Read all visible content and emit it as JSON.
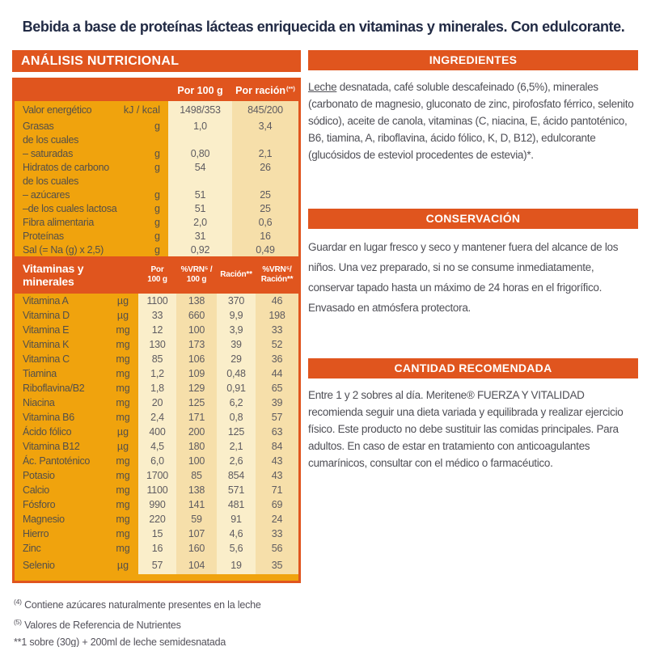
{
  "page": {
    "top_title": "Bebida a base de proteínas lácteas enriquecida en vitaminas y minerales. Con edulcorante."
  },
  "colors": {
    "orange": "#E0551E",
    "yellow": "#F0A30D",
    "cream": "#FAEECA",
    "tan": "#F6DFAA",
    "title_navy": "#222B45",
    "text_gray": "#534F4A"
  },
  "nutrition": {
    "section_title": "ANÁLISIS NUTRICIONAL",
    "header": {
      "col1": "Por 100 g",
      "col2": "Por ración",
      "col2_sup": "(**)"
    },
    "macro_rows": [
      {
        "label": "Valor energético",
        "unit": "kJ / kcal",
        "per100": "1498/353",
        "racion": "845/200"
      },
      {
        "label": "Grasas",
        "unit": "g",
        "per100": "1,0",
        "racion": "3,4"
      },
      {
        "label": "de los cuales",
        "unit": "",
        "per100": "",
        "racion": ""
      },
      {
        "label": "– saturadas",
        "unit": "g",
        "per100": "0,80",
        "racion": "2,1"
      },
      {
        "label": "Hidratos de carbono",
        "unit": "g",
        "per100": "54",
        "racion": "26"
      },
      {
        "label": "de los cuales",
        "unit": "",
        "per100": "",
        "racion": ""
      },
      {
        "label": "– azúcares",
        "unit": "g",
        "per100": "51",
        "racion": "25"
      },
      {
        "label": "–de los cuales lactosa",
        "unit": "g",
        "per100": "51",
        "racion": "25"
      },
      {
        "label": "Fibra alimentaria",
        "unit": "g",
        "per100": "2,0",
        "racion": "0,6"
      },
      {
        "label": "Proteínas",
        "unit": "g",
        "per100": "31",
        "racion": "16"
      },
      {
        "label": "Sal (= Na (g) x 2,5)",
        "unit": "g",
        "per100": "0,92",
        "racion": "0,49"
      }
    ],
    "vitamins_header": {
      "title": "Vitaminas y\nminerales",
      "c1": "Por\n100 g",
      "c2": "%VRN⁵ /\n100 g",
      "c3": "Ración**",
      "c4": "%VRN⁵/\nRación**"
    },
    "vitamin_rows": [
      {
        "label": "Vitamina A",
        "unit": "µg",
        "per100": "1100",
        "vrn100": "138",
        "racion": "370",
        "vrnracion": "46"
      },
      {
        "label": "Vitamina D",
        "unit": "µg",
        "per100": "33",
        "vrn100": "660",
        "racion": "9,9",
        "vrnracion": "198"
      },
      {
        "label": "Vitamina E",
        "unit": "mg",
        "per100": "12",
        "vrn100": "100",
        "racion": "3,9",
        "vrnracion": "33"
      },
      {
        "label": "Vitamina K",
        "unit": "mg",
        "per100": "130",
        "vrn100": "173",
        "racion": "39",
        "vrnracion": "52"
      },
      {
        "label": "Vitamina C",
        "unit": "mg",
        "per100": "85",
        "vrn100": "106",
        "racion": "29",
        "vrnracion": "36"
      },
      {
        "label": "Tiamina",
        "unit": "mg",
        "per100": "1,2",
        "vrn100": "109",
        "racion": "0,48",
        "vrnracion": "44"
      },
      {
        "label": "Riboflavina/B2",
        "unit": "mg",
        "per100": "1,8",
        "vrn100": "129",
        "racion": "0,91",
        "vrnracion": "65"
      },
      {
        "label": "Niacina",
        "unit": "mg",
        "per100": "20",
        "vrn100": "125",
        "racion": "6,2",
        "vrnracion": "39"
      },
      {
        "label": "Vitamina B6",
        "unit": "mg",
        "per100": "2,4",
        "vrn100": "171",
        "racion": "0,8",
        "vrnracion": "57"
      },
      {
        "label": "Ácido fólico",
        "unit": "µg",
        "per100": "400",
        "vrn100": "200",
        "racion": "125",
        "vrnracion": "63"
      },
      {
        "label": "Vitamina B12",
        "unit": "µg",
        "per100": "4,5",
        "vrn100": "180",
        "racion": "2,1",
        "vrnracion": "84"
      },
      {
        "label": "Ác. Pantoténico",
        "unit": "mg",
        "per100": "6,0",
        "vrn100": "100",
        "racion": "2,6",
        "vrnracion": "43"
      },
      {
        "label": "Potasio",
        "unit": "mg",
        "per100": "1700",
        "vrn100": "85",
        "racion": "854",
        "vrnracion": "43"
      },
      {
        "label": "Calcio",
        "unit": "mg",
        "per100": "1100",
        "vrn100": "138",
        "racion": "571",
        "vrnracion": "71"
      },
      {
        "label": "Fósforo",
        "unit": "mg",
        "per100": "990",
        "vrn100": "141",
        "racion": "481",
        "vrnracion": "69"
      },
      {
        "label": "Magnesio",
        "unit": "mg",
        "per100": "220",
        "vrn100": "59",
        "racion": "91",
        "vrnracion": "24"
      },
      {
        "label": "Hierro",
        "unit": "mg",
        "per100": "15",
        "vrn100": "107",
        "racion": "4,6",
        "vrnracion": "33"
      },
      {
        "label": "Zinc",
        "unit": "mg",
        "per100": "16",
        "vrn100": "160",
        "racion": "5,6",
        "vrnracion": "56"
      },
      {
        "label": "Selenio",
        "unit": "µg",
        "per100": "57",
        "vrn100": "104",
        "racion": "19",
        "vrnracion": "35"
      }
    ],
    "footnotes": [
      {
        "marker": "(4)",
        "sup": true,
        "text": "Contiene azúcares naturalmente presentes en la leche"
      },
      {
        "marker": "(5)",
        "sup": true,
        "text": "Valores de Referencia de Nutrientes"
      },
      {
        "marker": "**",
        "sup": false,
        "text": "1 sobre (30g) + 200ml de leche semidesnatada"
      }
    ]
  },
  "ingredients": {
    "section_title": "INGREDIENTES",
    "allergen": "Leche",
    "text": " desnatada, café soluble descafeinado (6,5%), minerales (carbonato de magnesio, gluconato de zinc, pirofosfato férrico, selenito sódico), aceite de canola, vitaminas (C, niacina, E, ácido pantoténico, B6, tiamina, A, riboflavina, ácido fólico, K, D, B12), edulcorante (glucósidos de esteviol procedentes de estevia)*."
  },
  "conservation": {
    "section_title": "CONSERVACIÓN",
    "text": "Guardar en lugar fresco y seco y mantener fuera del alcance de los niños. Una vez preparado, si no se consume inmediatamente, conservar tapado hasta un máximo de 24 horas en el frigorífico. Envasado en atmósfera protectora."
  },
  "recommended": {
    "section_title": "CANTIDAD RECOMENDADA",
    "text": "Entre 1 y 2 sobres al día. Meritene® FUERZA Y VITALIDAD recomienda seguir una dieta variada y equilibrada y realizar ejercicio físico. Este producto no debe sustituir las comidas principales. Para adultos. En caso de estar en tratamiento con anticoagulantes cumarínicos, consultar con el médico o farmacéutico."
  }
}
